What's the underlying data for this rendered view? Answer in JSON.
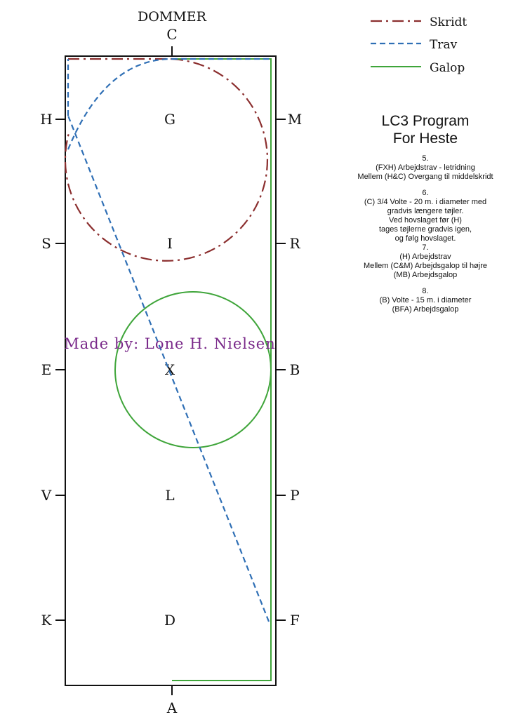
{
  "judge_label": "DOMMER",
  "legend": [
    {
      "label": "Skridt",
      "color": "#8b2e2e",
      "style": "dashdot",
      "icon": "dashdot-line-icon"
    },
    {
      "label": "Trav",
      "color": "#2f6fb5",
      "style": "dashed",
      "icon": "dashed-line-icon"
    },
    {
      "label": "Galop",
      "color": "#3fa53a",
      "style": "solid",
      "icon": "solid-line-icon"
    }
  ],
  "arena": {
    "top_letter": "C",
    "bottom_letter": "A",
    "left_letters": [
      "H",
      "S",
      "E",
      "V",
      "K"
    ],
    "right_letters": [
      "M",
      "R",
      "B",
      "P",
      "F"
    ],
    "center_letters": [
      "G",
      "I",
      "X",
      "L",
      "D"
    ]
  },
  "maker": "Made by: Lone H. Nielsen",
  "program": {
    "title_lines": [
      "LC3 Program",
      "For Heste"
    ],
    "steps": [
      {
        "lines": [
          "5.",
          "(FXH) Arbejdstrav - letridning",
          "Mellem (H&C) Overgang til middelskridt"
        ]
      },
      {
        "lines": [
          "6.",
          "(C) 3/4 Volte - 20 m. i diameter med",
          "gradvis længere tøjler.",
          "Ved hovslaget før (H)",
          "tages tøjlerne gradvis igen,",
          "og følg hovslaget.",
          "7.",
          "(H) Arbejdstrav",
          "Mellem (C&M) Arbejdsgalop til højre",
          "(MB) Arbejdsgalop"
        ]
      },
      {
        "lines": [
          "8.",
          "(B) Volte - 15 m. i diameter",
          "(BFA) Arbejdsgalop"
        ]
      }
    ]
  },
  "colors": {
    "walk": "#8b2e2e",
    "trot": "#2f6fb5",
    "canter": "#3fa53a",
    "maker_text": "#7a2a8a"
  }
}
